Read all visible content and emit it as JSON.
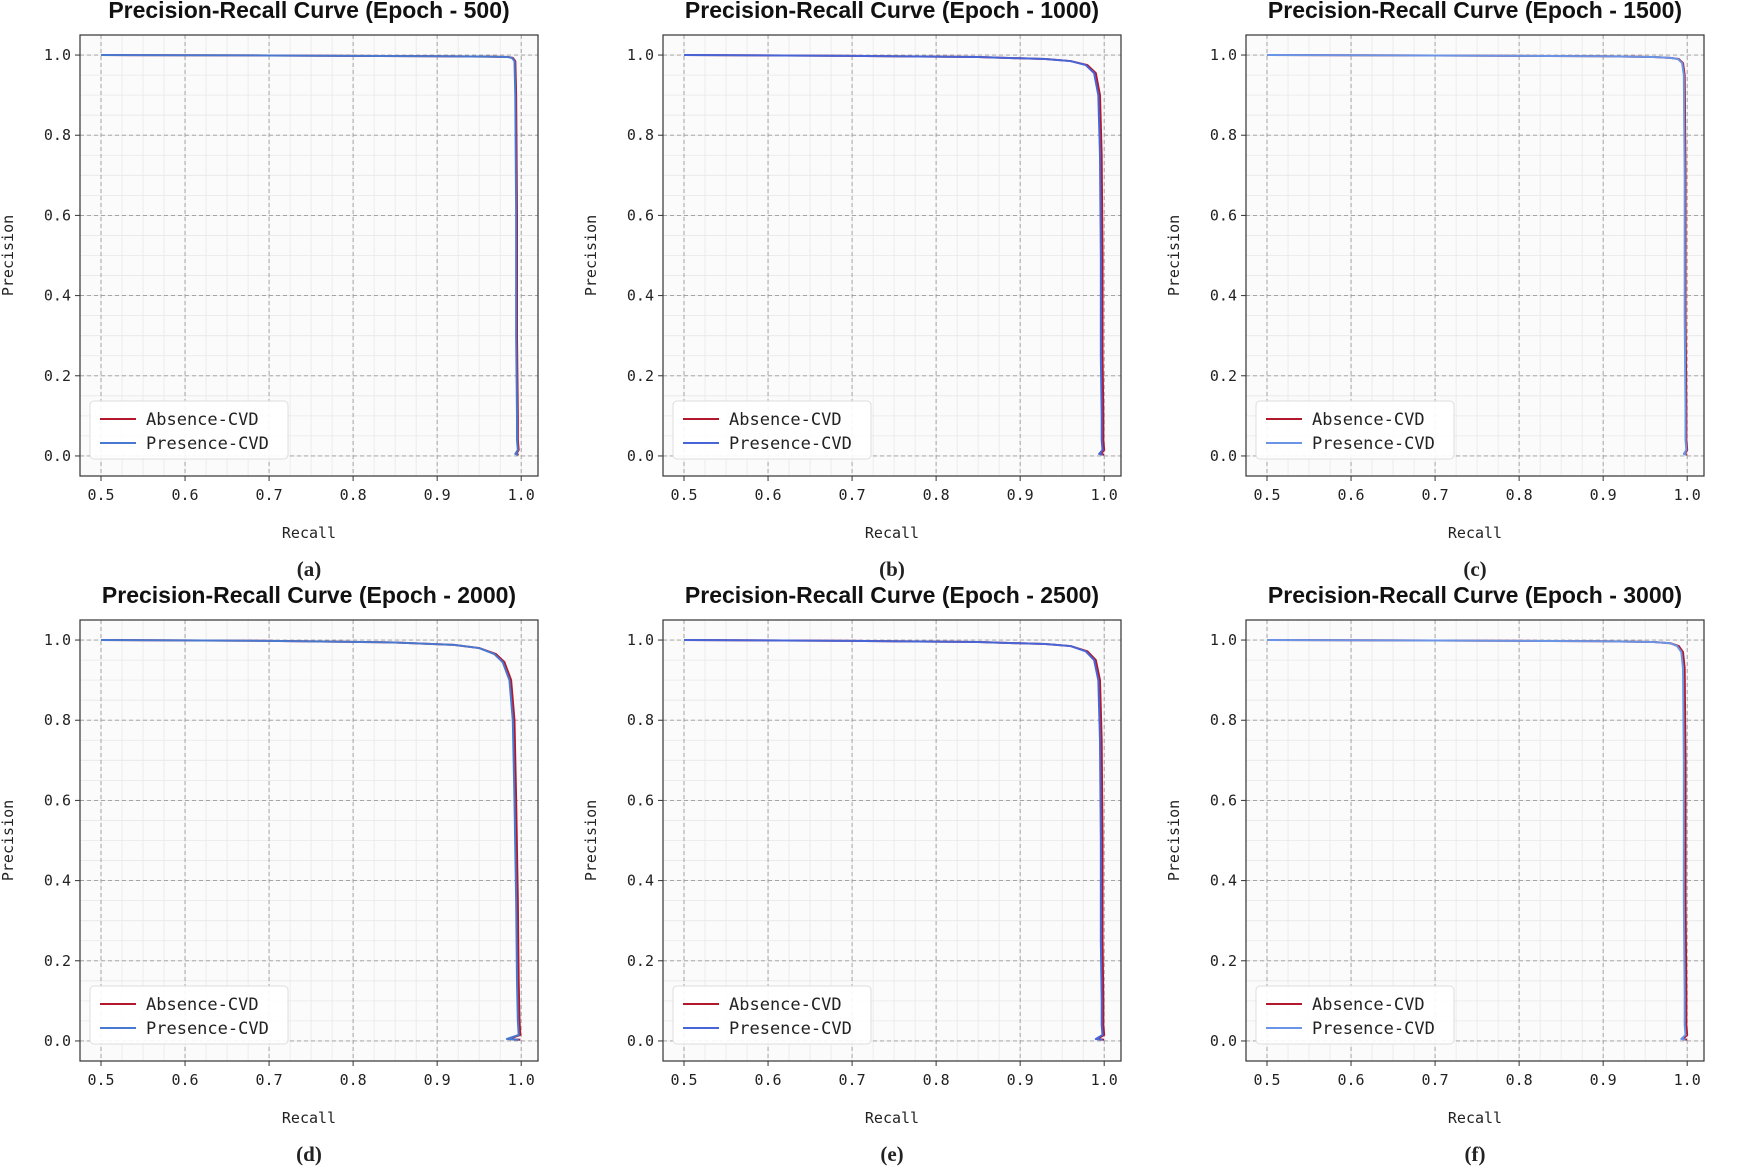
{
  "chart_data": [
    {
      "type": "line",
      "title": "Precision-Recall Curve (Epoch - 500)",
      "caption": "(a)",
      "xlabel": "Recall",
      "ylabel": "Precision",
      "xlim": [
        0.475,
        1.02
      ],
      "ylim": [
        -0.05,
        1.05
      ],
      "xticks": [
        "0.5",
        "0.6",
        "0.7",
        "0.8",
        "0.9",
        "1.0"
      ],
      "yticks": [
        "0.0",
        "0.2",
        "0.4",
        "0.6",
        "0.8",
        "1.0"
      ],
      "grid": true,
      "legend": "lower-left",
      "series": [
        {
          "name": "Absence-CVD",
          "color": "#b2182b",
          "x": [
            0.5,
            0.7,
            0.9,
            0.96,
            0.985,
            0.99,
            0.993,
            0.994,
            0.995,
            0.995,
            0.996,
            0.996,
            0.997,
            0.994,
            0.997
          ],
          "y": [
            1.0,
            0.999,
            0.997,
            0.996,
            0.995,
            0.993,
            0.985,
            0.9,
            0.6,
            0.3,
            0.1,
            0.04,
            0.015,
            0.005,
            0.003
          ]
        },
        {
          "name": "Presence-CVD",
          "color": "#4878d0",
          "x": [
            0.5,
            0.7,
            0.9,
            0.96,
            0.984,
            0.989,
            0.992,
            0.993,
            0.994,
            0.994,
            0.995,
            0.995,
            0.996,
            0.993,
            0.996
          ],
          "y": [
            1.0,
            0.999,
            0.997,
            0.996,
            0.995,
            0.993,
            0.985,
            0.9,
            0.6,
            0.3,
            0.1,
            0.04,
            0.015,
            0.005,
            0.003
          ]
        }
      ]
    },
    {
      "type": "line",
      "title": "Precision-Recall Curve (Epoch - 1000)",
      "caption": "(b)",
      "xlabel": "Recall",
      "ylabel": "Precision",
      "xlim": [
        0.475,
        1.02
      ],
      "ylim": [
        -0.05,
        1.05
      ],
      "xticks": [
        "0.5",
        "0.6",
        "0.7",
        "0.8",
        "0.9",
        "1.0"
      ],
      "yticks": [
        "0.0",
        "0.2",
        "0.4",
        "0.6",
        "0.8",
        "1.0"
      ],
      "grid": true,
      "legend": "lower-left",
      "series": [
        {
          "name": "Absence-CVD",
          "color": "#b2182b",
          "x": [
            0.5,
            0.7,
            0.85,
            0.93,
            0.96,
            0.98,
            0.99,
            0.995,
            0.997,
            0.998,
            0.998,
            0.999,
            0.999,
            1.0,
            0.996,
            1.0
          ],
          "y": [
            1.0,
            0.998,
            0.995,
            0.99,
            0.985,
            0.975,
            0.955,
            0.9,
            0.75,
            0.5,
            0.25,
            0.1,
            0.04,
            0.015,
            0.005,
            0.003
          ]
        },
        {
          "name": "Presence-CVD",
          "color": "#4865d8",
          "x": [
            0.5,
            0.7,
            0.85,
            0.93,
            0.96,
            0.978,
            0.988,
            0.993,
            0.995,
            0.996,
            0.996,
            0.997,
            0.997,
            0.998,
            0.994,
            0.998
          ],
          "y": [
            1.0,
            0.998,
            0.995,
            0.99,
            0.985,
            0.975,
            0.955,
            0.9,
            0.75,
            0.5,
            0.25,
            0.1,
            0.04,
            0.015,
            0.005,
            0.003
          ]
        }
      ]
    },
    {
      "type": "line",
      "title": "Precision-Recall Curve (Epoch - 1500)",
      "caption": "(c)",
      "xlabel": "Recall",
      "ylabel": "Precision",
      "xlim": [
        0.475,
        1.02
      ],
      "ylim": [
        -0.05,
        1.05
      ],
      "xticks": [
        "0.5",
        "0.6",
        "0.7",
        "0.8",
        "0.9",
        "1.0"
      ],
      "yticks": [
        "0.0",
        "0.2",
        "0.4",
        "0.6",
        "0.8",
        "1.0"
      ],
      "grid": true,
      "legend": "lower-left",
      "series": [
        {
          "name": "Absence-CVD",
          "color": "#b2182b",
          "x": [
            0.5,
            0.7,
            0.9,
            0.96,
            0.98,
            0.99,
            0.995,
            0.997,
            0.998,
            0.998,
            0.999,
            0.999,
            1.0,
            0.997,
            1.0
          ],
          "y": [
            1.0,
            0.999,
            0.997,
            0.995,
            0.993,
            0.99,
            0.98,
            0.95,
            0.7,
            0.35,
            0.12,
            0.04,
            0.015,
            0.005,
            0.003
          ]
        },
        {
          "name": "Presence-CVD",
          "color": "#6a95e6",
          "x": [
            0.5,
            0.7,
            0.9,
            0.96,
            0.98,
            0.989,
            0.994,
            0.996,
            0.997,
            0.997,
            0.998,
            0.998,
            0.999,
            0.996,
            0.999
          ],
          "y": [
            1.0,
            0.999,
            0.997,
            0.995,
            0.993,
            0.99,
            0.98,
            0.95,
            0.7,
            0.35,
            0.12,
            0.04,
            0.015,
            0.005,
            0.003
          ]
        }
      ]
    },
    {
      "type": "line",
      "title": "Precision-Recall Curve (Epoch - 2000)",
      "caption": "(d)",
      "xlabel": "Recall",
      "ylabel": "Precision",
      "xlim": [
        0.475,
        1.02
      ],
      "ylim": [
        -0.05,
        1.05
      ],
      "xticks": [
        "0.5",
        "0.6",
        "0.7",
        "0.8",
        "0.9",
        "1.0"
      ],
      "yticks": [
        "0.0",
        "0.2",
        "0.4",
        "0.6",
        "0.8",
        "1.0"
      ],
      "grid": true,
      "legend": "lower-left",
      "series": [
        {
          "name": "Absence-CVD",
          "color": "#b2182b",
          "x": [
            0.5,
            0.7,
            0.85,
            0.92,
            0.95,
            0.97,
            0.98,
            0.988,
            0.992,
            0.994,
            0.996,
            0.997,
            0.998,
            0.999,
            0.985,
            0.999
          ],
          "y": [
            1.0,
            0.998,
            0.994,
            0.988,
            0.98,
            0.965,
            0.945,
            0.9,
            0.8,
            0.6,
            0.35,
            0.15,
            0.05,
            0.015,
            0.005,
            0.003
          ]
        },
        {
          "name": "Presence-CVD",
          "color": "#4878d0",
          "x": [
            0.5,
            0.7,
            0.85,
            0.92,
            0.95,
            0.968,
            0.978,
            0.986,
            0.99,
            0.992,
            0.994,
            0.995,
            0.996,
            0.997,
            0.983,
            0.997
          ],
          "y": [
            1.0,
            0.998,
            0.994,
            0.988,
            0.98,
            0.965,
            0.945,
            0.9,
            0.8,
            0.6,
            0.35,
            0.15,
            0.05,
            0.015,
            0.005,
            0.003
          ]
        }
      ]
    },
    {
      "type": "line",
      "title": "Precision-Recall Curve (Epoch - 2500)",
      "caption": "(e)",
      "xlabel": "Recall",
      "ylabel": "Precision",
      "xlim": [
        0.475,
        1.02
      ],
      "ylim": [
        -0.05,
        1.05
      ],
      "xticks": [
        "0.5",
        "0.6",
        "0.7",
        "0.8",
        "0.9",
        "1.0"
      ],
      "yticks": [
        "0.0",
        "0.2",
        "0.4",
        "0.6",
        "0.8",
        "1.0"
      ],
      "grid": true,
      "legend": "lower-left",
      "series": [
        {
          "name": "Absence-CVD",
          "color": "#b2182b",
          "x": [
            0.5,
            0.7,
            0.85,
            0.93,
            0.96,
            0.98,
            0.99,
            0.995,
            0.997,
            0.998,
            0.998,
            0.999,
            0.999,
            1.0,
            0.992,
            1.0
          ],
          "y": [
            1.0,
            0.998,
            0.995,
            0.99,
            0.985,
            0.972,
            0.95,
            0.9,
            0.75,
            0.5,
            0.25,
            0.1,
            0.04,
            0.015,
            0.005,
            0.003
          ]
        },
        {
          "name": "Presence-CVD",
          "color": "#4865d8",
          "x": [
            0.5,
            0.7,
            0.85,
            0.93,
            0.96,
            0.978,
            0.988,
            0.993,
            0.995,
            0.996,
            0.996,
            0.997,
            0.997,
            0.998,
            0.99,
            0.998
          ],
          "y": [
            1.0,
            0.998,
            0.995,
            0.99,
            0.985,
            0.972,
            0.95,
            0.9,
            0.75,
            0.5,
            0.25,
            0.1,
            0.04,
            0.015,
            0.005,
            0.003
          ]
        }
      ]
    },
    {
      "type": "line",
      "title": "Precision-Recall Curve (Epoch - 3000)",
      "caption": "(f)",
      "xlabel": "Recall",
      "ylabel": "Precision",
      "xlim": [
        0.475,
        1.02
      ],
      "ylim": [
        -0.05,
        1.05
      ],
      "xticks": [
        "0.5",
        "0.6",
        "0.7",
        "0.8",
        "0.9",
        "1.0"
      ],
      "yticks": [
        "0.0",
        "0.2",
        "0.4",
        "0.6",
        "0.8",
        "1.0"
      ],
      "grid": true,
      "legend": "lower-left",
      "series": [
        {
          "name": "Absence-CVD",
          "color": "#b2182b",
          "x": [
            0.5,
            0.7,
            0.9,
            0.96,
            0.98,
            0.99,
            0.995,
            0.997,
            0.998,
            0.998,
            0.999,
            0.999,
            1.0,
            0.995,
            1.0
          ],
          "y": [
            1.0,
            0.999,
            0.997,
            0.995,
            0.992,
            0.985,
            0.97,
            0.93,
            0.7,
            0.35,
            0.12,
            0.04,
            0.015,
            0.005,
            0.003
          ]
        },
        {
          "name": "Presence-CVD",
          "color": "#6a95e6",
          "x": [
            0.5,
            0.7,
            0.9,
            0.96,
            0.98,
            0.988,
            0.993,
            0.995,
            0.996,
            0.996,
            0.997,
            0.997,
            0.998,
            0.993,
            0.998
          ],
          "y": [
            1.0,
            0.999,
            0.997,
            0.995,
            0.992,
            0.985,
            0.97,
            0.93,
            0.7,
            0.35,
            0.12,
            0.04,
            0.015,
            0.005,
            0.003
          ]
        }
      ]
    }
  ]
}
